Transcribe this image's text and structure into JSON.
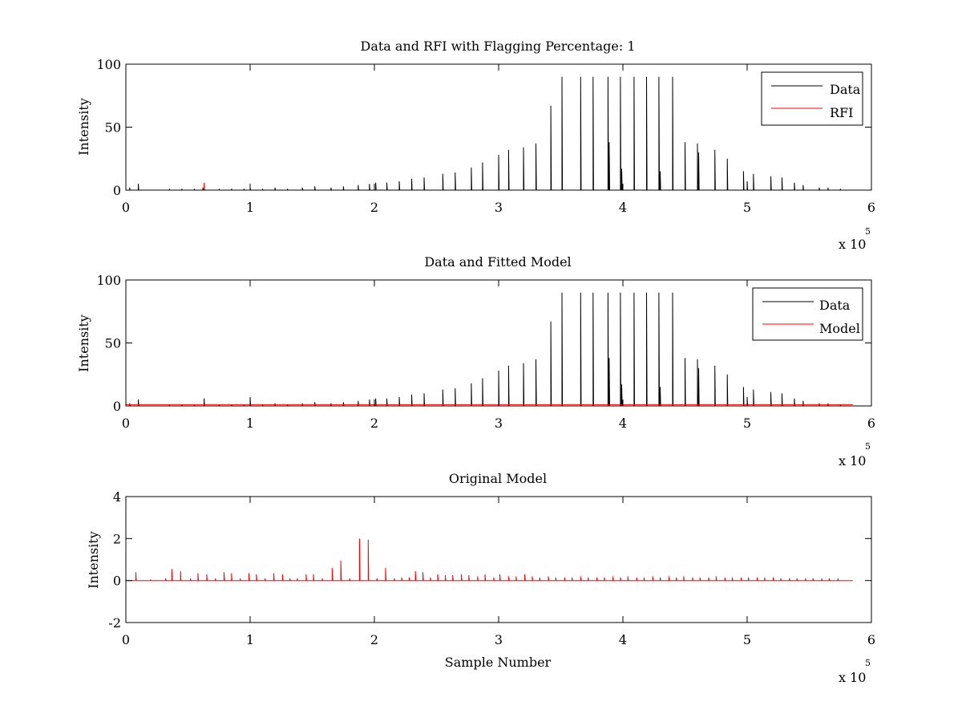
{
  "figure": {
    "background": "#ffffff",
    "axis_color": "#000000"
  },
  "chart_data": [
    {
      "type": "line",
      "title": "Data and RFI with Flagging Percentage: 1",
      "xlabel": "",
      "ylabel": "Intensity",
      "xlim": [
        0,
        600000
      ],
      "ylim": [
        0,
        100
      ],
      "xticks": [
        0,
        1,
        2,
        3,
        4,
        5,
        6
      ],
      "yticks": [
        0,
        50,
        100
      ],
      "x_multiplier": "x 10",
      "x_multiplier_exp": "5",
      "legend": {
        "location": "top-right",
        "entries": [
          "Data",
          "RFI"
        ]
      },
      "series": [
        {
          "name": "Data",
          "color": "#000000",
          "spikes": [
            [
              3000,
              2
            ],
            [
              10000,
              5
            ],
            [
              35000,
              1
            ],
            [
              45000,
              1
            ],
            [
              55000,
              1
            ],
            [
              62000,
              2
            ],
            [
              75000,
              1
            ],
            [
              85000,
              1
            ],
            [
              95000,
              1
            ],
            [
              100000,
              2
            ],
            [
              110000,
              1
            ],
            [
              120000,
              2
            ],
            [
              130000,
              1
            ],
            [
              142000,
              2
            ],
            [
              152000,
              3
            ],
            [
              165000,
              2
            ],
            [
              175000,
              3
            ],
            [
              187000,
              4
            ],
            [
              196000,
              5
            ],
            [
              201000,
              6
            ],
            [
              210000,
              6
            ],
            [
              220000,
              7
            ],
            [
              230000,
              9
            ],
            [
              240000,
              10
            ],
            [
              255000,
              13
            ],
            [
              265000,
              14
            ],
            [
              278000,
              18
            ],
            [
              287000,
              22
            ],
            [
              300000,
              28
            ],
            [
              308000,
              32
            ],
            [
              320000,
              34
            ],
            [
              330000,
              37
            ],
            [
              342000,
              67
            ],
            [
              351000,
              90
            ],
            [
              366000,
              90
            ],
            [
              376000,
              90
            ],
            [
              388000,
              90
            ],
            [
              389000,
              38
            ],
            [
              398000,
              90
            ],
            [
              399000,
              17
            ],
            [
              409000,
              90
            ],
            [
              419000,
              90
            ],
            [
              429000,
              90
            ],
            [
              430000,
              15
            ],
            [
              440000,
              90
            ],
            [
              450000,
              38
            ],
            [
              460000,
              37
            ],
            [
              461000,
              30
            ],
            [
              474000,
              32
            ],
            [
              484000,
              25
            ],
            [
              497000,
              15
            ],
            [
              500000,
              7
            ],
            [
              505000,
              13
            ],
            [
              519000,
              11
            ],
            [
              528000,
              10
            ],
            [
              538000,
              6
            ],
            [
              545000,
              4
            ],
            [
              558000,
              2
            ],
            [
              565000,
              2
            ],
            [
              575000,
              1
            ]
          ]
        },
        {
          "name": "RFI",
          "color": "#ff0000",
          "spikes": [
            [
              63000,
              6
            ]
          ]
        }
      ],
      "x_end": 585000
    },
    {
      "type": "line",
      "title": "Data and Fitted Model",
      "xlabel": "",
      "ylabel": "Intensity",
      "xlim": [
        0,
        600000
      ],
      "ylim": [
        0,
        100
      ],
      "xticks": [
        0,
        1,
        2,
        3,
        4,
        5,
        6
      ],
      "yticks": [
        0,
        50,
        100
      ],
      "x_multiplier": "x 10",
      "x_multiplier_exp": "5",
      "legend": {
        "location": "top-right",
        "entries": [
          "Data",
          "Model"
        ]
      },
      "series": [
        {
          "name": "Data",
          "color": "#000000",
          "spikes": [
            [
              3000,
              2
            ],
            [
              10000,
              5
            ],
            [
              35000,
              1
            ],
            [
              45000,
              1
            ],
            [
              55000,
              1
            ],
            [
              63000,
              6
            ],
            [
              75000,
              1
            ],
            [
              85000,
              1
            ],
            [
              95000,
              1
            ],
            [
              100000,
              7
            ],
            [
              110000,
              1
            ],
            [
              120000,
              2
            ],
            [
              130000,
              1
            ],
            [
              142000,
              2
            ],
            [
              152000,
              3
            ],
            [
              165000,
              2
            ],
            [
              175000,
              3
            ],
            [
              187000,
              4
            ],
            [
              196000,
              5
            ],
            [
              201000,
              6
            ],
            [
              210000,
              6
            ],
            [
              220000,
              7
            ],
            [
              230000,
              9
            ],
            [
              240000,
              10
            ],
            [
              255000,
              13
            ],
            [
              265000,
              14
            ],
            [
              278000,
              18
            ],
            [
              287000,
              22
            ],
            [
              300000,
              28
            ],
            [
              308000,
              32
            ],
            [
              320000,
              34
            ],
            [
              330000,
              37
            ],
            [
              342000,
              67
            ],
            [
              351000,
              90
            ],
            [
              366000,
              90
            ],
            [
              376000,
              90
            ],
            [
              388000,
              90
            ],
            [
              389000,
              38
            ],
            [
              398000,
              90
            ],
            [
              399000,
              17
            ],
            [
              409000,
              90
            ],
            [
              419000,
              90
            ],
            [
              429000,
              90
            ],
            [
              430000,
              15
            ],
            [
              440000,
              90
            ],
            [
              450000,
              38
            ],
            [
              460000,
              37
            ],
            [
              461000,
              30
            ],
            [
              474000,
              32
            ],
            [
              484000,
              25
            ],
            [
              497000,
              15
            ],
            [
              500000,
              7
            ],
            [
              505000,
              13
            ],
            [
              519000,
              11
            ],
            [
              528000,
              10
            ],
            [
              538000,
              6
            ],
            [
              545000,
              4
            ],
            [
              558000,
              2
            ],
            [
              565000,
              2
            ],
            [
              575000,
              1
            ]
          ]
        },
        {
          "name": "Model",
          "color": "#ff0000",
          "baseline": 1,
          "spikes": []
        }
      ],
      "x_end": 585000
    },
    {
      "type": "line",
      "title": "Original Model",
      "xlabel": "Sample Number",
      "ylabel": "Intensity",
      "xlim": [
        0,
        600000
      ],
      "ylim": [
        -2,
        4
      ],
      "xticks": [
        0,
        1,
        2,
        3,
        4,
        5,
        6
      ],
      "yticks": [
        -2,
        0,
        2,
        4
      ],
      "x_multiplier": "x 10",
      "x_multiplier_exp": "5",
      "series": [
        {
          "color": "#ff0000",
          "spikes": [
            [
              8000,
              0.4
            ],
            [
              20000,
              0.05
            ],
            [
              32000,
              0.1
            ],
            [
              37000,
              0.55
            ],
            [
              44000,
              0.45
            ],
            [
              52000,
              0.1
            ],
            [
              58000,
              0.35
            ],
            [
              65000,
              0.3
            ],
            [
              72000,
              0.1
            ],
            [
              79000,
              0.4
            ],
            [
              85000,
              0.35
            ],
            [
              92000,
              0.1
            ],
            [
              99000,
              0.35
            ],
            [
              105000,
              0.3
            ],
            [
              112000,
              0.1
            ],
            [
              119000,
              0.35
            ],
            [
              126000,
              0.3
            ],
            [
              132000,
              0.1
            ],
            [
              138000,
              0.1
            ],
            [
              145000,
              0.3
            ],
            [
              151000,
              0.3
            ],
            [
              158000,
              0.1
            ],
            [
              166000,
              0.6
            ],
            [
              173000,
              0.95
            ],
            [
              180000,
              0.1
            ],
            [
              188000,
              2.0
            ],
            [
              195000,
              1.95
            ],
            [
              202000,
              0.1
            ],
            [
              209000,
              0.6
            ],
            [
              216000,
              0.1
            ],
            [
              222000,
              0.15
            ],
            [
              228000,
              0.15
            ],
            [
              233000,
              0.45
            ],
            [
              239000,
              0.4
            ],
            [
              245000,
              0.15
            ],
            [
              251000,
              0.3
            ],
            [
              257000,
              0.25
            ],
            [
              263000,
              0.25
            ],
            [
              270000,
              0.3
            ],
            [
              276000,
              0.25
            ],
            [
              283000,
              0.2
            ],
            [
              289000,
              0.3
            ],
            [
              296000,
              0.15
            ],
            [
              301000,
              0.3
            ],
            [
              308000,
              0.2
            ],
            [
              314000,
              0.2
            ],
            [
              321000,
              0.3
            ],
            [
              327000,
              0.2
            ],
            [
              333000,
              0.15
            ],
            [
              340000,
              0.2
            ],
            [
              346000,
              0.15
            ],
            [
              353000,
              0.15
            ],
            [
              359000,
              0.15
            ],
            [
              366000,
              0.2
            ],
            [
              372000,
              0.15
            ],
            [
              379000,
              0.15
            ],
            [
              385000,
              0.15
            ],
            [
              392000,
              0.2
            ],
            [
              398000,
              0.15
            ],
            [
              404000,
              0.2
            ],
            [
              411000,
              0.15
            ],
            [
              417000,
              0.15
            ],
            [
              424000,
              0.2
            ],
            [
              430000,
              0.15
            ],
            [
              437000,
              0.2
            ],
            [
              443000,
              0.15
            ],
            [
              449000,
              0.2
            ],
            [
              456000,
              0.15
            ],
            [
              462000,
              0.15
            ],
            [
              469000,
              0.15
            ],
            [
              475000,
              0.2
            ],
            [
              482000,
              0.15
            ],
            [
              488000,
              0.15
            ],
            [
              495000,
              0.15
            ],
            [
              501000,
              0.15
            ],
            [
              508000,
              0.15
            ],
            [
              514000,
              0.15
            ],
            [
              521000,
              0.15
            ],
            [
              527000,
              0.1
            ],
            [
              534000,
              0.1
            ],
            [
              540000,
              0.1
            ],
            [
              547000,
              0.1
            ],
            [
              553000,
              0.1
            ],
            [
              560000,
              0.1
            ],
            [
              566000,
              0.1
            ],
            [
              573000,
              0.1
            ]
          ]
        }
      ],
      "x_end": 585000
    }
  ]
}
